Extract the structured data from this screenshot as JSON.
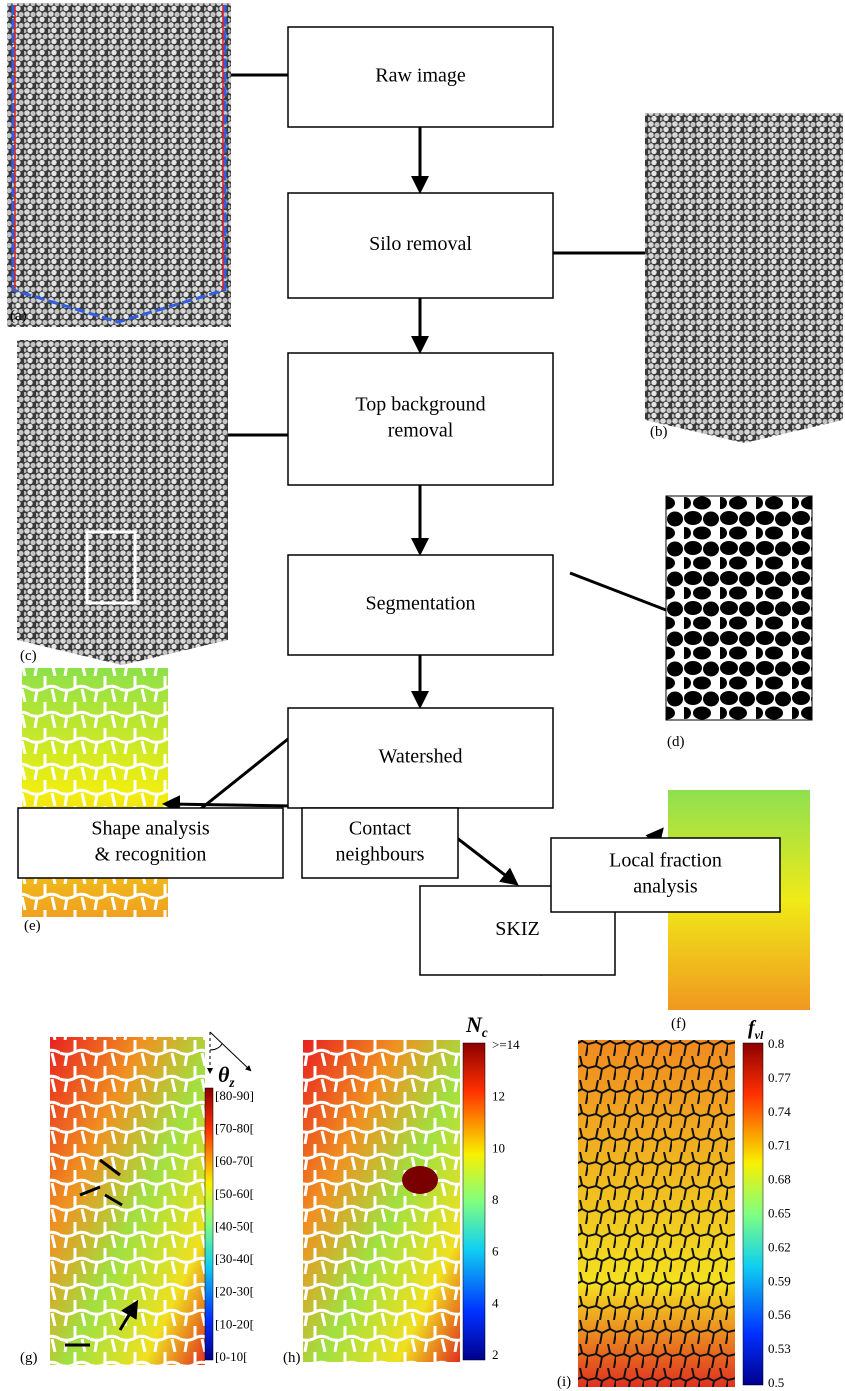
{
  "nodes": [
    {
      "lines": [
        "Raw image"
      ]
    },
    {
      "lines": [
        "Silo removal"
      ]
    },
    {
      "lines": [
        "Top background",
        "removal"
      ]
    },
    {
      "lines": [
        "Segmentation"
      ]
    },
    {
      "lines": [
        "Watershed"
      ]
    },
    {
      "lines": [
        "SKIZ"
      ]
    },
    {
      "lines": [
        "Shape analysis",
        "& recognition"
      ]
    },
    {
      "lines": [
        "Contact",
        "neighbours"
      ]
    },
    {
      "lines": [
        "Local fraction",
        "analysis"
      ]
    }
  ],
  "panels": [
    "(a)",
    "(b)",
    "(c)",
    "(d)",
    "(e)",
    "(f)",
    "(g)",
    "(h)",
    "(i)"
  ],
  "colorbars": [
    {
      "symbol": "θ",
      "subscript": "z",
      "labels": [
        "[80-90]",
        "[70-80[",
        "[60-70[",
        "[50-60[",
        "[40-50[",
        "[30-40[",
        "[20-30[",
        "[10-20[",
        "[0-10["
      ]
    },
    {
      "symbol": "N",
      "subscript": "c",
      "labels": [
        ">=14",
        "12",
        "10",
        "8",
        "6",
        "4",
        "2"
      ]
    },
    {
      "symbol": "f",
      "subscript": "vl",
      "labels": [
        "0.8",
        "0.77",
        "0.74",
        "0.71",
        "0.68",
        "0.65",
        "0.62",
        "0.59",
        "0.56",
        "0.53",
        "0.5"
      ]
    }
  ]
}
